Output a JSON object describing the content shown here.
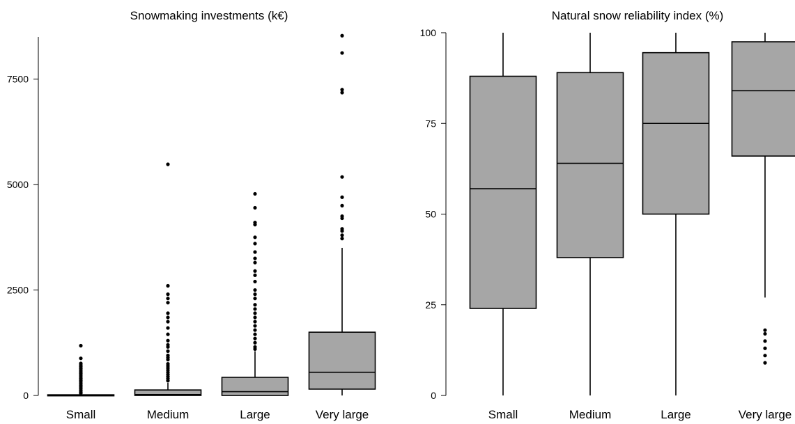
{
  "chart_data": [
    {
      "type": "boxplot",
      "title": "Snowmaking investments (k€)",
      "ylim": [
        0,
        8600
      ],
      "yticks": [
        0,
        2500,
        5000,
        7500
      ],
      "ytick_labels": [
        "0",
        "2500",
        "5000",
        "7500"
      ],
      "categories": [
        "Small",
        "Medium",
        "Large",
        "Very large"
      ],
      "box_color": "#a6a6a6",
      "boxes": [
        {
          "category": "Small",
          "min": 0,
          "q1": 0,
          "median": 0,
          "q3": 15,
          "max": 30,
          "outliers": [
            1180,
            880,
            760,
            720,
            680,
            640,
            600,
            560,
            520,
            480,
            440,
            400,
            360,
            320,
            280,
            240,
            200,
            160,
            120,
            80,
            50
          ]
        },
        {
          "category": "Medium",
          "min": 0,
          "q1": 0,
          "median": 20,
          "q3": 130,
          "max": 300,
          "outliers": [
            5480,
            2600,
            2400,
            2300,
            2200,
            1950,
            1850,
            1750,
            1600,
            1450,
            1300,
            1200,
            1150,
            1050,
            950,
            900,
            850,
            750,
            700,
            650,
            600,
            550,
            500,
            450,
            400,
            350
          ]
        },
        {
          "category": "Large",
          "min": 0,
          "q1": 0,
          "median": 90,
          "q3": 430,
          "max": 1050,
          "outliers": [
            4780,
            4450,
            4100,
            4050,
            3750,
            3600,
            3400,
            3250,
            3150,
            2950,
            2850,
            2700,
            2500,
            2400,
            2300,
            2150,
            2050,
            1950,
            1850,
            1750,
            1650,
            1550,
            1450,
            1350,
            1250,
            1150,
            1100
          ]
        },
        {
          "category": "Very large",
          "min": 0,
          "q1": 150,
          "median": 550,
          "q3": 1500,
          "max": 3500,
          "outliers": [
            8530,
            8120,
            7250,
            7180,
            5180,
            4700,
            4500,
            4250,
            4200,
            3950,
            3900,
            3800,
            3720
          ]
        }
      ]
    },
    {
      "type": "boxplot",
      "title": "Natural snow reliability index (%)",
      "ylim": [
        0,
        100
      ],
      "yticks": [
        0,
        25,
        50,
        75,
        100
      ],
      "ytick_labels": [
        "0",
        "25",
        "50",
        "75",
        "100"
      ],
      "categories": [
        "Small",
        "Medium",
        "Large",
        "Very large"
      ],
      "box_color": "#a6a6a6",
      "boxes": [
        {
          "category": "Small",
          "min": 0,
          "q1": 24,
          "median": 57,
          "q3": 88,
          "max": 100,
          "outliers": []
        },
        {
          "category": "Medium",
          "min": 0,
          "q1": 38,
          "median": 64,
          "q3": 89,
          "max": 100,
          "outliers": []
        },
        {
          "category": "Large",
          "min": 0,
          "q1": 50,
          "median": 75,
          "q3": 94.5,
          "max": 100,
          "outliers": []
        },
        {
          "category": "Very large",
          "min": 27,
          "q1": 66,
          "median": 84,
          "q3": 97.5,
          "max": 100,
          "outliers": [
            18,
            17,
            15,
            13,
            11,
            9
          ]
        }
      ]
    }
  ]
}
